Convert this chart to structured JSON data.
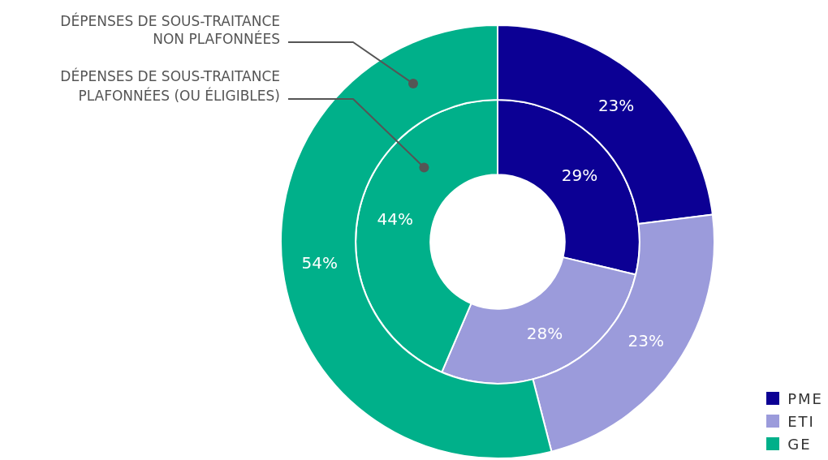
{
  "chart_data": {
    "type": "donut",
    "categories": [
      "PME",
      "ETI",
      "GE"
    ],
    "colors": [
      "#0c0094",
      "#9b9bdb",
      "#00b08a"
    ],
    "series": [
      {
        "name": "DÉPENSES DE SOUS-TRAITANCE NON PLAFONNÉES",
        "values": [
          23,
          23,
          54
        ],
        "value_labels": [
          "23%",
          "23%",
          "54%"
        ]
      },
      {
        "name": "DÉPENSES DE SOUS-TRAITANCE PLAFONNÉES (OU ÉLIGIBLES)",
        "values": [
          29,
          28,
          44
        ],
        "value_labels": [
          "29%",
          "28%",
          "44%"
        ]
      }
    ],
    "legend": "bottom right"
  }
}
